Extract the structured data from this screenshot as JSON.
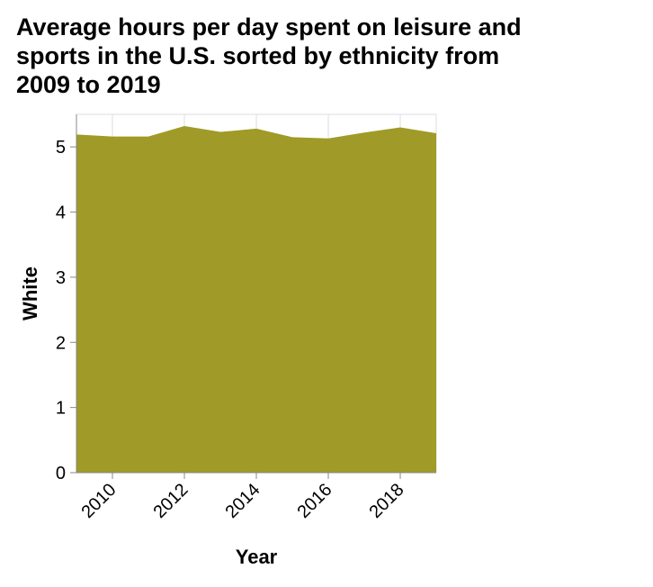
{
  "chart_data": {
    "type": "area",
    "title_lines": [
      "Average hours per day spent on leisure and",
      "sports in the U.S. sorted by ethnicity from",
      "2009 to 2019"
    ],
    "xlabel": "Year",
    "ylabel": "White",
    "x": [
      2009,
      2010,
      2011,
      2012,
      2013,
      2014,
      2015,
      2016,
      2017,
      2018,
      2019
    ],
    "series": [
      {
        "name": "White",
        "values": [
          5.19,
          5.16,
          5.16,
          5.32,
          5.23,
          5.28,
          5.15,
          5.13,
          5.22,
          5.3,
          5.21
        ]
      }
    ],
    "xlim": [
      2009,
      2019
    ],
    "ylim": [
      0,
      5.5
    ],
    "xticks": [
      "2010",
      "2012",
      "2014",
      "2016",
      "2018"
    ],
    "yticks": [
      "0",
      "1",
      "2",
      "3",
      "4",
      "5"
    ],
    "fill_color": "#a09a28",
    "grid": true
  }
}
